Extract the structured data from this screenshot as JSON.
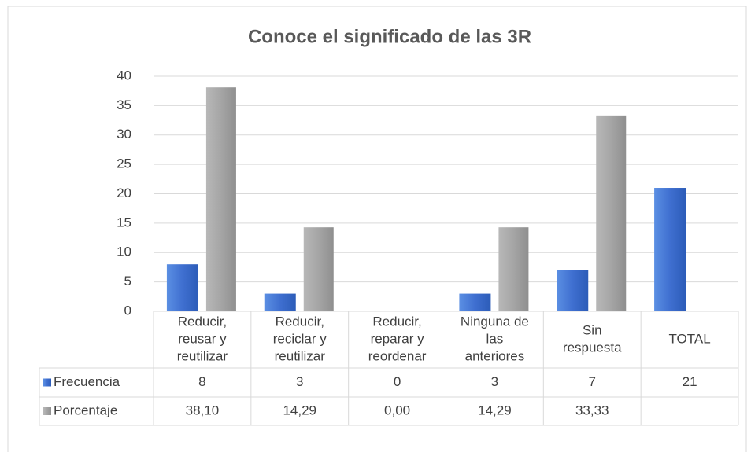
{
  "chart_data": {
    "type": "bar",
    "title": "Conoce el significado de las 3R",
    "categories": [
      [
        "Reducir,",
        "reusar y",
        "reutilizar"
      ],
      [
        "Reducir,",
        "reciclar y",
        "reutilizar"
      ],
      [
        "Reducir,",
        "reparar y",
        "reordenar"
      ],
      [
        "Ninguna de",
        "las",
        "anteriores"
      ],
      [
        "Sin",
        "respuesta"
      ],
      [
        "TOTAL"
      ]
    ],
    "series": [
      {
        "name": "Frecuencia",
        "color": "#4472c4",
        "values": [
          8,
          3,
          0,
          3,
          7,
          21
        ]
      },
      {
        "name": "Porcentaje",
        "color": "#a5a5a5",
        "values": [
          38.1,
          14.29,
          0,
          14.29,
          33.33,
          null
        ],
        "value_labels": [
          "38,10",
          "14,29",
          "0,00",
          "14,29",
          "33,33",
          null
        ]
      }
    ],
    "ylim": [
      0,
      40
    ],
    "yticks": [
      0,
      5,
      10,
      15,
      20,
      25,
      30,
      35,
      40
    ],
    "grid": true,
    "legend": "table"
  }
}
